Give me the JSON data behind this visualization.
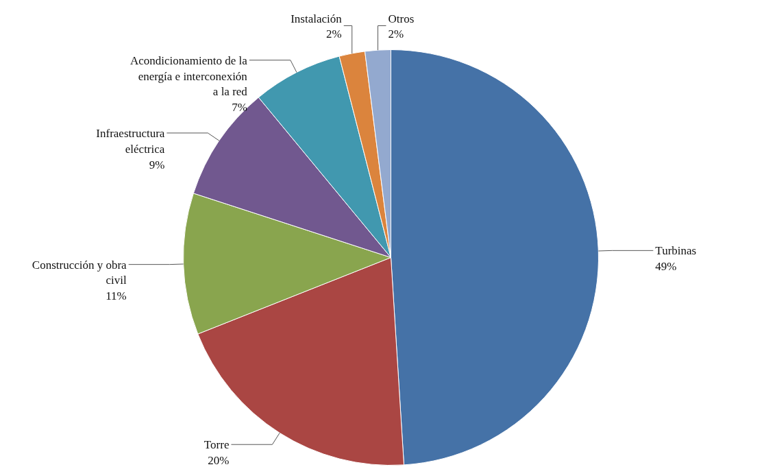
{
  "chart_data": {
    "type": "pie",
    "categories": [
      "Turbinas",
      "Torre",
      "Construcción y obra civil",
      "Infraestructura eléctrica",
      "Acondicionamiento de la energía e interconexión a la red",
      "Instalación",
      "Otros"
    ],
    "values": [
      49,
      20,
      11,
      9,
      7,
      2,
      2
    ],
    "colors": [
      "#4572a7",
      "#aa4643",
      "#89a54e",
      "#71588f",
      "#4198af",
      "#db843d",
      "#93a9cf"
    ],
    "value_labels": [
      "49%",
      "20%",
      "11%",
      "9%",
      "7%",
      "2%",
      "2%"
    ],
    "legend": false
  }
}
